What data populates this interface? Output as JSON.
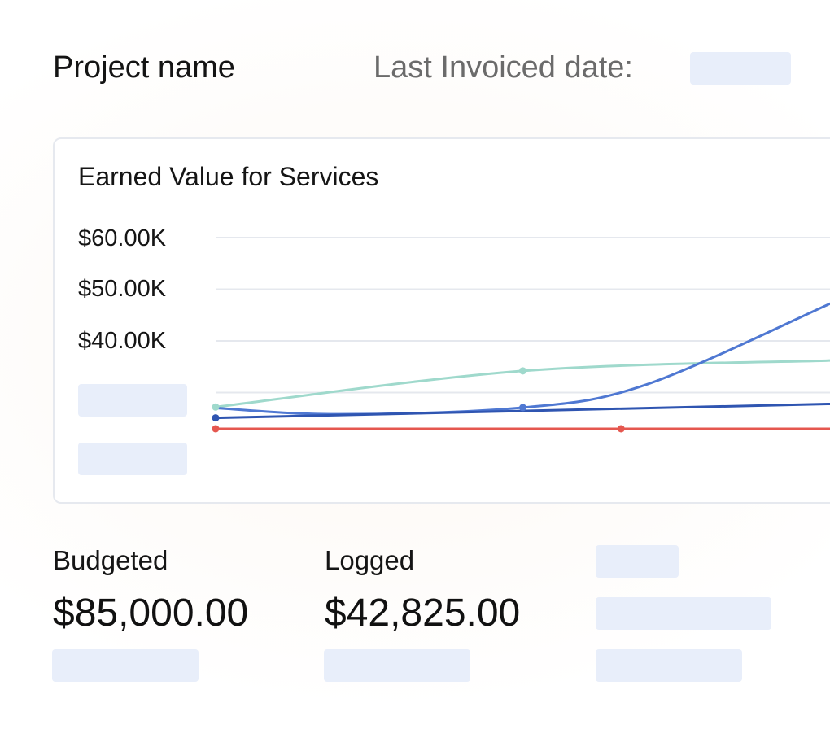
{
  "header": {
    "project_name": "Project name",
    "last_invoiced_label": "Last Invoiced date:"
  },
  "chart_data": {
    "type": "line",
    "title": "Earned Value for Services",
    "y_tick_labels": [
      "$60.00K",
      "$50.00K",
      "$40.00K"
    ],
    "y_ticks": [
      60000,
      50000,
      40000
    ],
    "grid": true,
    "series": [
      {
        "color": "#9fd9cc",
        "points": [
          [
            0,
            27200
          ],
          [
            0.5,
            34200
          ],
          [
            1,
            36200
          ]
        ],
        "markers": [
          0,
          0.5
        ]
      },
      {
        "color": "#4f78d2",
        "points": [
          [
            0,
            27000
          ],
          [
            0.2,
            25800
          ],
          [
            0.5,
            27100
          ],
          [
            0.7,
            31500
          ],
          [
            1,
            47200
          ]
        ],
        "markers": [
          0.5
        ]
      },
      {
        "color": "#2f55b1",
        "points": [
          [
            0,
            25100
          ],
          [
            1,
            27800
          ]
        ],
        "markers": [
          0
        ]
      },
      {
        "color": "#e5574f",
        "points": [
          [
            0,
            23000
          ],
          [
            1,
            23000
          ]
        ],
        "markers": [
          0,
          0.66
        ]
      }
    ]
  },
  "stats": {
    "budgeted_label": "Budgeted",
    "budgeted_value": "$85,000.00",
    "logged_label": "Logged",
    "logged_value": "$42,825.00"
  }
}
